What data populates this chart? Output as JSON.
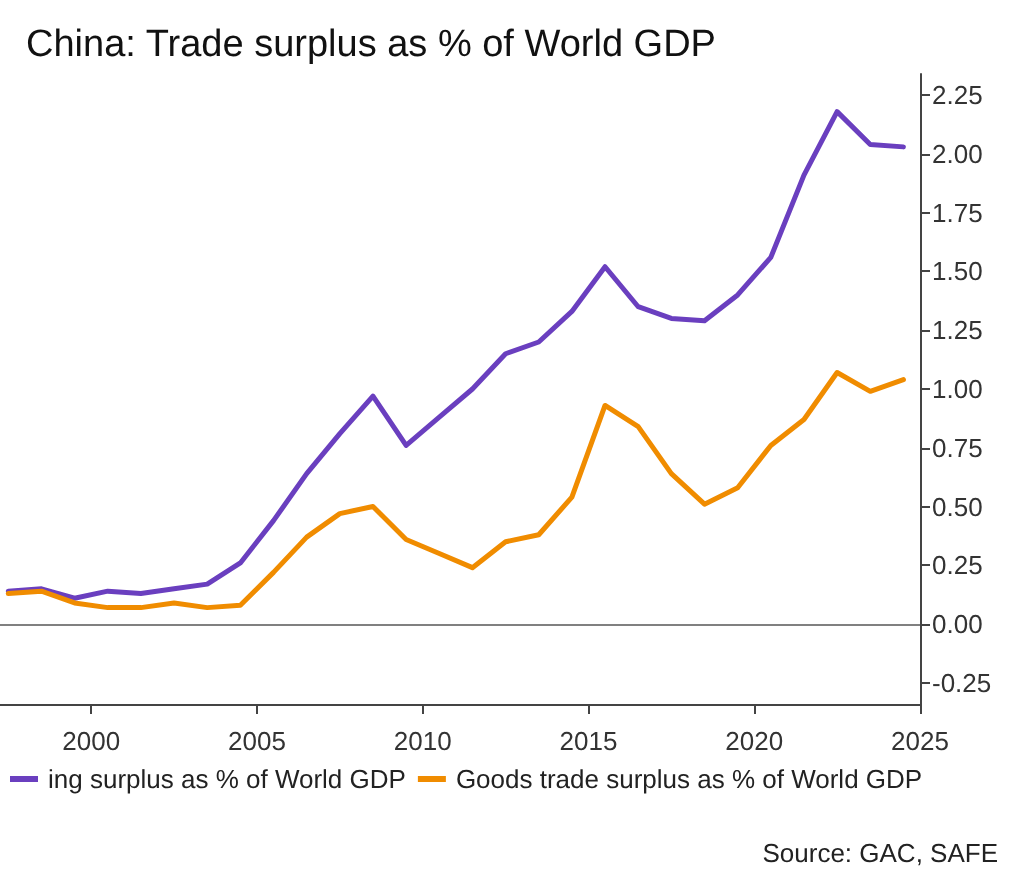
{
  "chart_data": {
    "type": "line",
    "title": "China: Trade surplus as % of World GDP",
    "x": [
      1997.5,
      1998.5,
      1999.5,
      2000.5,
      2001.5,
      2002.5,
      2003.5,
      2004.5,
      2005.5,
      2006.5,
      2007.5,
      2008.5,
      2009.5,
      2010.5,
      2011.5,
      2012.5,
      2013.5,
      2014.5,
      2015.5,
      2016.5,
      2017.5,
      2018.5,
      2019.5,
      2020.5,
      2021.5,
      2022.5,
      2023.5,
      2024.5
    ],
    "series": [
      {
        "name": "ing surplus as % of World GDP",
        "color": "#6a3fbf",
        "values": [
          0.14,
          0.15,
          0.11,
          0.14,
          0.13,
          0.15,
          0.17,
          0.26,
          0.44,
          0.64,
          0.81,
          0.97,
          0.76,
          0.88,
          1.0,
          1.15,
          1.2,
          1.33,
          1.52,
          1.35,
          1.3,
          1.29,
          1.4,
          1.56,
          1.91,
          2.18,
          2.04,
          2.03
        ]
      },
      {
        "name": "Goods trade surplus as % of World GDP",
        "color": "#f08c00",
        "values": [
          0.13,
          0.14,
          0.09,
          0.07,
          0.07,
          0.09,
          0.07,
          0.08,
          0.22,
          0.37,
          0.47,
          0.5,
          0.36,
          0.3,
          0.24,
          0.35,
          0.38,
          0.54,
          0.93,
          0.84,
          0.64,
          0.51,
          0.58,
          0.76,
          0.87,
          1.07,
          0.99,
          1.04
        ]
      }
    ],
    "xlim": [
      1997.25,
      2025
    ],
    "xticks": [
      2000,
      2005,
      2010,
      2015,
      2020,
      2025
    ],
    "ylim": [
      -0.34,
      2.34
    ],
    "yticks": [
      -0.25,
      {
        "value": 0,
        "label": "0.00"
      },
      0.25,
      {
        "value": 0.5,
        "label": "0.50"
      },
      0.75,
      {
        "value": 1,
        "label": "1.00"
      },
      1.25,
      {
        "value": 1.5,
        "label": "1.50"
      },
      1.75,
      {
        "value": 2,
        "label": "2.00"
      },
      2.25
    ],
    "ref_lines": [
      {
        "axis": "y",
        "value": 0,
        "color": "#808080"
      }
    ],
    "grid": false,
    "legend": "bottom",
    "line_style": "solid",
    "marker": "none",
    "annotations": [
      "Source: GAC, SAFE"
    ]
  }
}
